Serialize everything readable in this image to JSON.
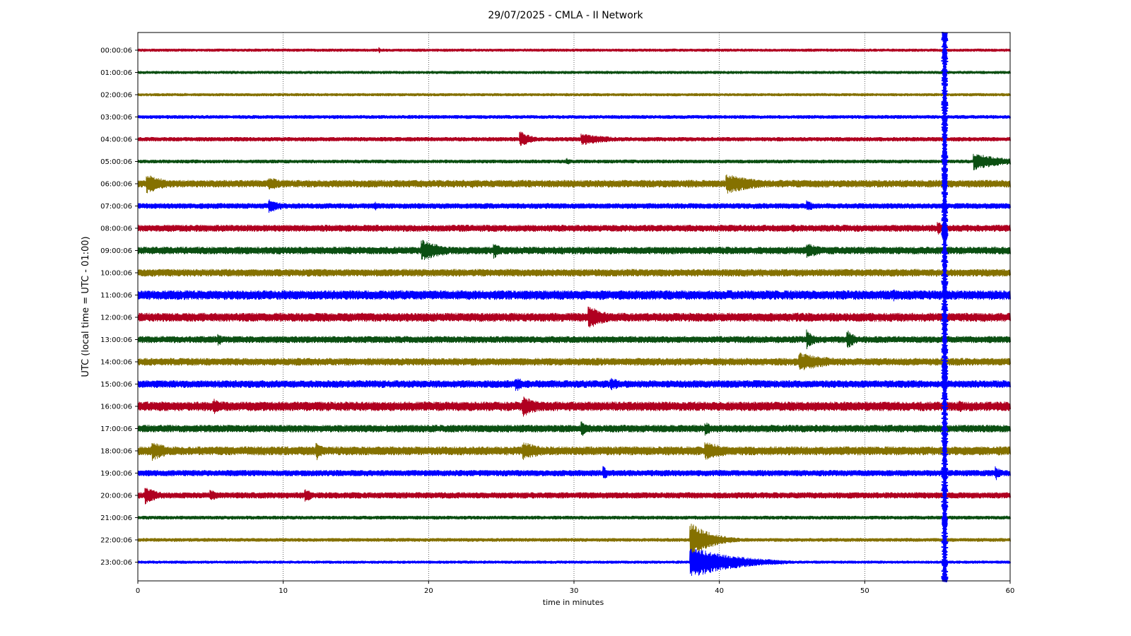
{
  "chart_data": {
    "type": "line",
    "title": "29/07/2025 - CMLA - II Network",
    "xlabel": "time in minutes",
    "ylabel": "UTC (local time = UTC - 01:00)",
    "xlim": [
      0,
      60
    ],
    "xticks": [
      0,
      10,
      20,
      30,
      40,
      50,
      60
    ],
    "grid": "vertical dotted at x ticks",
    "rows": [
      "00:00:06",
      "01:00:06",
      "02:00:06",
      "03:00:06",
      "04:00:06",
      "05:00:06",
      "06:00:06",
      "07:00:06",
      "08:00:06",
      "09:00:06",
      "10:00:06",
      "11:00:06",
      "12:00:06",
      "13:00:06",
      "14:00:06",
      "15:00:06",
      "16:00:06",
      "17:00:06",
      "18:00:06",
      "19:00:06",
      "20:00:06",
      "21:00:06",
      "22:00:06",
      "23:00:06"
    ],
    "trace_colors": [
      "#b00020",
      "#0b4f12",
      "#857100",
      "#0000ff"
    ],
    "noise_level": [
      0.25,
      0.25,
      0.25,
      0.3,
      0.35,
      0.3,
      0.6,
      0.45,
      0.55,
      0.6,
      0.6,
      0.75,
      0.7,
      0.55,
      0.6,
      0.6,
      0.75,
      0.6,
      0.7,
      0.5,
      0.5,
      0.3,
      0.3,
      0.25
    ],
    "events": [
      {
        "row": 0,
        "minute": 16.6,
        "amplitude": 0.5,
        "duration": 0.3
      },
      {
        "row": 4,
        "minute": 26.3,
        "amplitude": 1.3,
        "duration": 2.0
      },
      {
        "row": 4,
        "minute": 30.5,
        "amplitude": 1.0,
        "duration": 5.0
      },
      {
        "row": 5,
        "minute": 29.5,
        "amplitude": 0.6,
        "duration": 1.0
      },
      {
        "row": 5,
        "minute": 57.5,
        "amplitude": 1.4,
        "duration": 5.0
      },
      {
        "row": 6,
        "minute": 0.6,
        "amplitude": 1.6,
        "duration": 3.5
      },
      {
        "row": 6,
        "minute": 9.0,
        "amplitude": 1.1,
        "duration": 3.0
      },
      {
        "row": 6,
        "minute": 23.0,
        "amplitude": 0.7,
        "duration": 1.0
      },
      {
        "row": 6,
        "minute": 40.5,
        "amplitude": 1.6,
        "duration": 6.0
      },
      {
        "row": 7,
        "minute": 9.0,
        "amplitude": 1.2,
        "duration": 2.5
      },
      {
        "row": 7,
        "minute": 16.3,
        "amplitude": 0.8,
        "duration": 0.8
      },
      {
        "row": 7,
        "minute": 46.0,
        "amplitude": 1.0,
        "duration": 1.5
      },
      {
        "row": 8,
        "minute": 55.0,
        "amplitude": 1.2,
        "duration": 1.2
      },
      {
        "row": 8,
        "minute": 45.0,
        "amplitude": 0.8,
        "duration": 1.5
      },
      {
        "row": 9,
        "minute": 19.5,
        "amplitude": 1.8,
        "duration": 4.0
      },
      {
        "row": 9,
        "minute": 24.5,
        "amplitude": 1.3,
        "duration": 1.5
      },
      {
        "row": 9,
        "minute": 46.0,
        "amplitude": 1.3,
        "duration": 3.0
      },
      {
        "row": 11,
        "minute": 52.0,
        "amplitude": 1.0,
        "duration": 1.0
      },
      {
        "row": 12,
        "minute": 31.0,
        "amplitude": 2.0,
        "duration": 3.0
      },
      {
        "row": 13,
        "minute": 5.5,
        "amplitude": 1.2,
        "duration": 0.8
      },
      {
        "row": 13,
        "minute": 46.0,
        "amplitude": 1.6,
        "duration": 1.5
      },
      {
        "row": 13,
        "minute": 48.8,
        "amplitude": 1.6,
        "duration": 1.5
      },
      {
        "row": 14,
        "minute": 45.5,
        "amplitude": 1.5,
        "duration": 6.0
      },
      {
        "row": 15,
        "minute": 26.0,
        "amplitude": 1.2,
        "duration": 2.0
      },
      {
        "row": 15,
        "minute": 32.5,
        "amplitude": 1.1,
        "duration": 2.5
      },
      {
        "row": 16,
        "minute": 5.2,
        "amplitude": 1.3,
        "duration": 1.5
      },
      {
        "row": 16,
        "minute": 26.5,
        "amplitude": 1.8,
        "duration": 3.0
      },
      {
        "row": 16,
        "minute": 56.5,
        "amplitude": 1.0,
        "duration": 2.0
      },
      {
        "row": 17,
        "minute": 30.5,
        "amplitude": 1.4,
        "duration": 1.0
      },
      {
        "row": 17,
        "minute": 39.0,
        "amplitude": 1.2,
        "duration": 1.5
      },
      {
        "row": 18,
        "minute": 1.0,
        "amplitude": 1.6,
        "duration": 3.0
      },
      {
        "row": 18,
        "minute": 12.3,
        "amplitude": 1.5,
        "duration": 1.2
      },
      {
        "row": 18,
        "minute": 26.5,
        "amplitude": 1.5,
        "duration": 4.0
      },
      {
        "row": 18,
        "minute": 39.0,
        "amplitude": 1.5,
        "duration": 5.0
      },
      {
        "row": 19,
        "minute": 32.0,
        "amplitude": 1.2,
        "duration": 1.0
      },
      {
        "row": 19,
        "minute": 59.0,
        "amplitude": 1.2,
        "duration": 1.0
      },
      {
        "row": 20,
        "minute": 0.5,
        "amplitude": 1.4,
        "duration": 2.5
      },
      {
        "row": 20,
        "minute": 5.0,
        "amplitude": 1.0,
        "duration": 1.5
      },
      {
        "row": 20,
        "minute": 11.5,
        "amplitude": 1.2,
        "duration": 1.5
      },
      {
        "row": 22,
        "minute": 38.0,
        "amplitude": 2.8,
        "duration": 3.5
      },
      {
        "row": 23,
        "minute": 38.0,
        "amplitude": 2.6,
        "duration": 7.0
      }
    ],
    "vertical_feature": {
      "minute": 55.5,
      "color": "#0000ff",
      "from_row": 0,
      "to_row": 23
    }
  }
}
